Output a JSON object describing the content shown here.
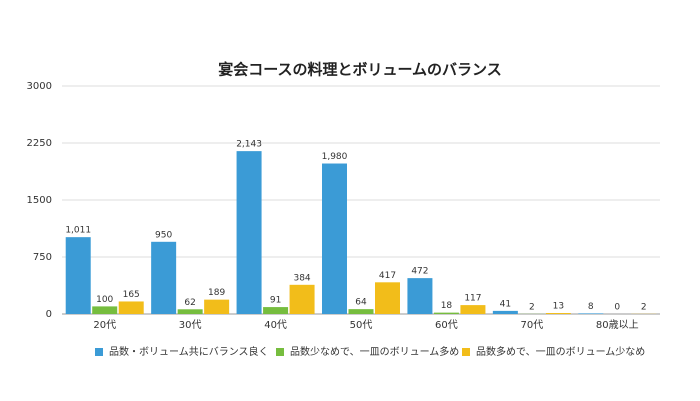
{
  "chart_data": {
    "type": "bar",
    "title": "宴会コースの料理とボリュームのバランス",
    "categories": [
      "20代",
      "30代",
      "40代",
      "50代",
      "60代",
      "70代",
      "80歳以上"
    ],
    "series": [
      {
        "name": "品数・ボリューム共にバランス良く",
        "color": "#3b9bd6",
        "values": [
          1011,
          950,
          2143,
          1980,
          472,
          41,
          8
        ],
        "value_labels": [
          "1,011",
          "950",
          "2,143",
          "1,980",
          "472",
          "41",
          "8"
        ]
      },
      {
        "name": "品数少なめで、一皿のボリューム多め",
        "color": "#76bd3e",
        "values": [
          100,
          62,
          91,
          64,
          18,
          2,
          0
        ]
      },
      {
        "name": "品数多めで、一皿のボリューム少なめ",
        "color": "#f2bd1a",
        "values": [
          165,
          189,
          384,
          417,
          117,
          13,
          2
        ]
      }
    ],
    "ylim": [
      0,
      3000
    ],
    "yticks": [
      0,
      750,
      1500,
      2250,
      3000
    ],
    "grid": true,
    "legend": "bottom"
  }
}
